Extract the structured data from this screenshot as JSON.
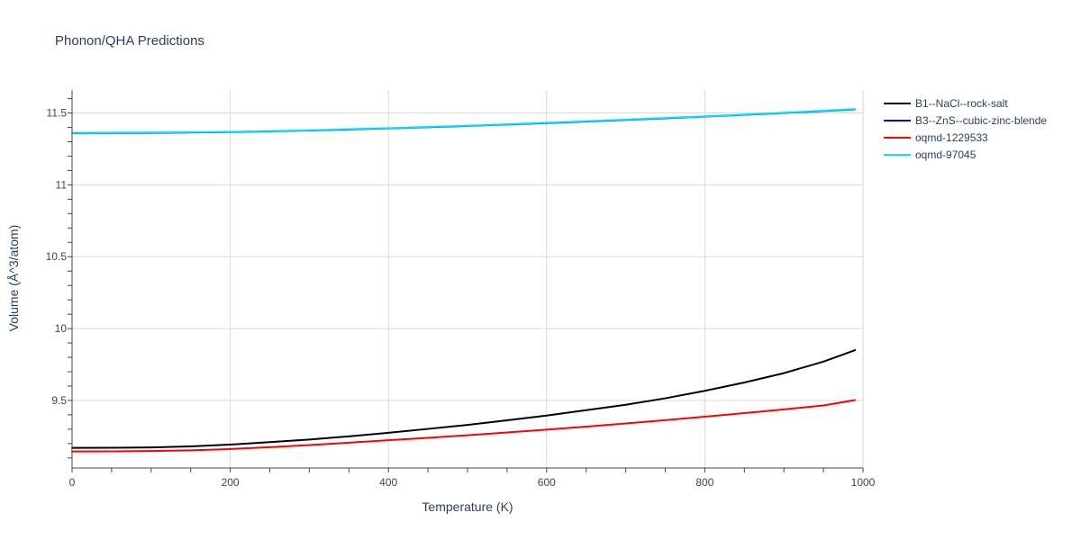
{
  "chart_data": {
    "type": "line",
    "title": "Phonon/QHA Predictions",
    "xlabel": "Temperature (K)",
    "ylabel": "Volume (Å^3/atom)",
    "xlim": [
      0,
      1000
    ],
    "ylim": [
      9.03,
      11.66
    ],
    "x_ticks": [
      0,
      200,
      400,
      600,
      800,
      1000
    ],
    "x_tick_labels": [
      "0",
      "200",
      "400",
      "600",
      "800",
      "1000"
    ],
    "y_ticks": [
      9.5,
      10,
      10.5,
      11,
      11.5
    ],
    "y_tick_labels": [
      "9.5",
      "10",
      "10.5",
      "11",
      "11.5"
    ],
    "grid": true,
    "legend_position": "top-right",
    "series": [
      {
        "name": "B1--NaCl--rock-salt",
        "color": "#000000",
        "x": [
          0,
          50,
          100,
          150,
          200,
          250,
          300,
          350,
          400,
          450,
          500,
          550,
          600,
          650,
          700,
          750,
          800,
          850,
          900,
          950,
          990
        ],
        "y": [
          9.17,
          9.171,
          9.173,
          9.18,
          9.193,
          9.21,
          9.228,
          9.25,
          9.275,
          9.302,
          9.33,
          9.362,
          9.395,
          9.432,
          9.47,
          9.515,
          9.567,
          9.625,
          9.69,
          9.77,
          9.85
        ]
      },
      {
        "name": "B3--ZnS--cubic-zinc-blende",
        "color": "#0000ff",
        "x": [
          0,
          100,
          200,
          300,
          400,
          500,
          600,
          700,
          800,
          900,
          990
        ],
        "y": [
          11.36,
          11.362,
          11.367,
          11.378,
          11.393,
          11.41,
          11.43,
          11.452,
          11.475,
          11.5,
          11.525
        ]
      },
      {
        "name": "oqmd-1229533",
        "color": "#ff0000",
        "x": [
          0,
          50,
          100,
          150,
          200,
          250,
          300,
          350,
          400,
          450,
          500,
          550,
          600,
          650,
          700,
          750,
          800,
          850,
          900,
          950,
          990
        ],
        "y": [
          9.145,
          9.146,
          9.148,
          9.153,
          9.162,
          9.175,
          9.19,
          9.206,
          9.223,
          9.24,
          9.258,
          9.277,
          9.297,
          9.318,
          9.34,
          9.363,
          9.387,
          9.412,
          9.438,
          9.465,
          9.503
        ]
      },
      {
        "name": "oqmd-97045",
        "color": "#00e5ff",
        "x": [
          0,
          100,
          200,
          300,
          400,
          500,
          600,
          700,
          800,
          900,
          990
        ],
        "y": [
          11.362,
          11.364,
          11.369,
          11.38,
          11.395,
          11.412,
          11.432,
          11.454,
          11.477,
          11.502,
          11.528
        ]
      }
    ]
  }
}
